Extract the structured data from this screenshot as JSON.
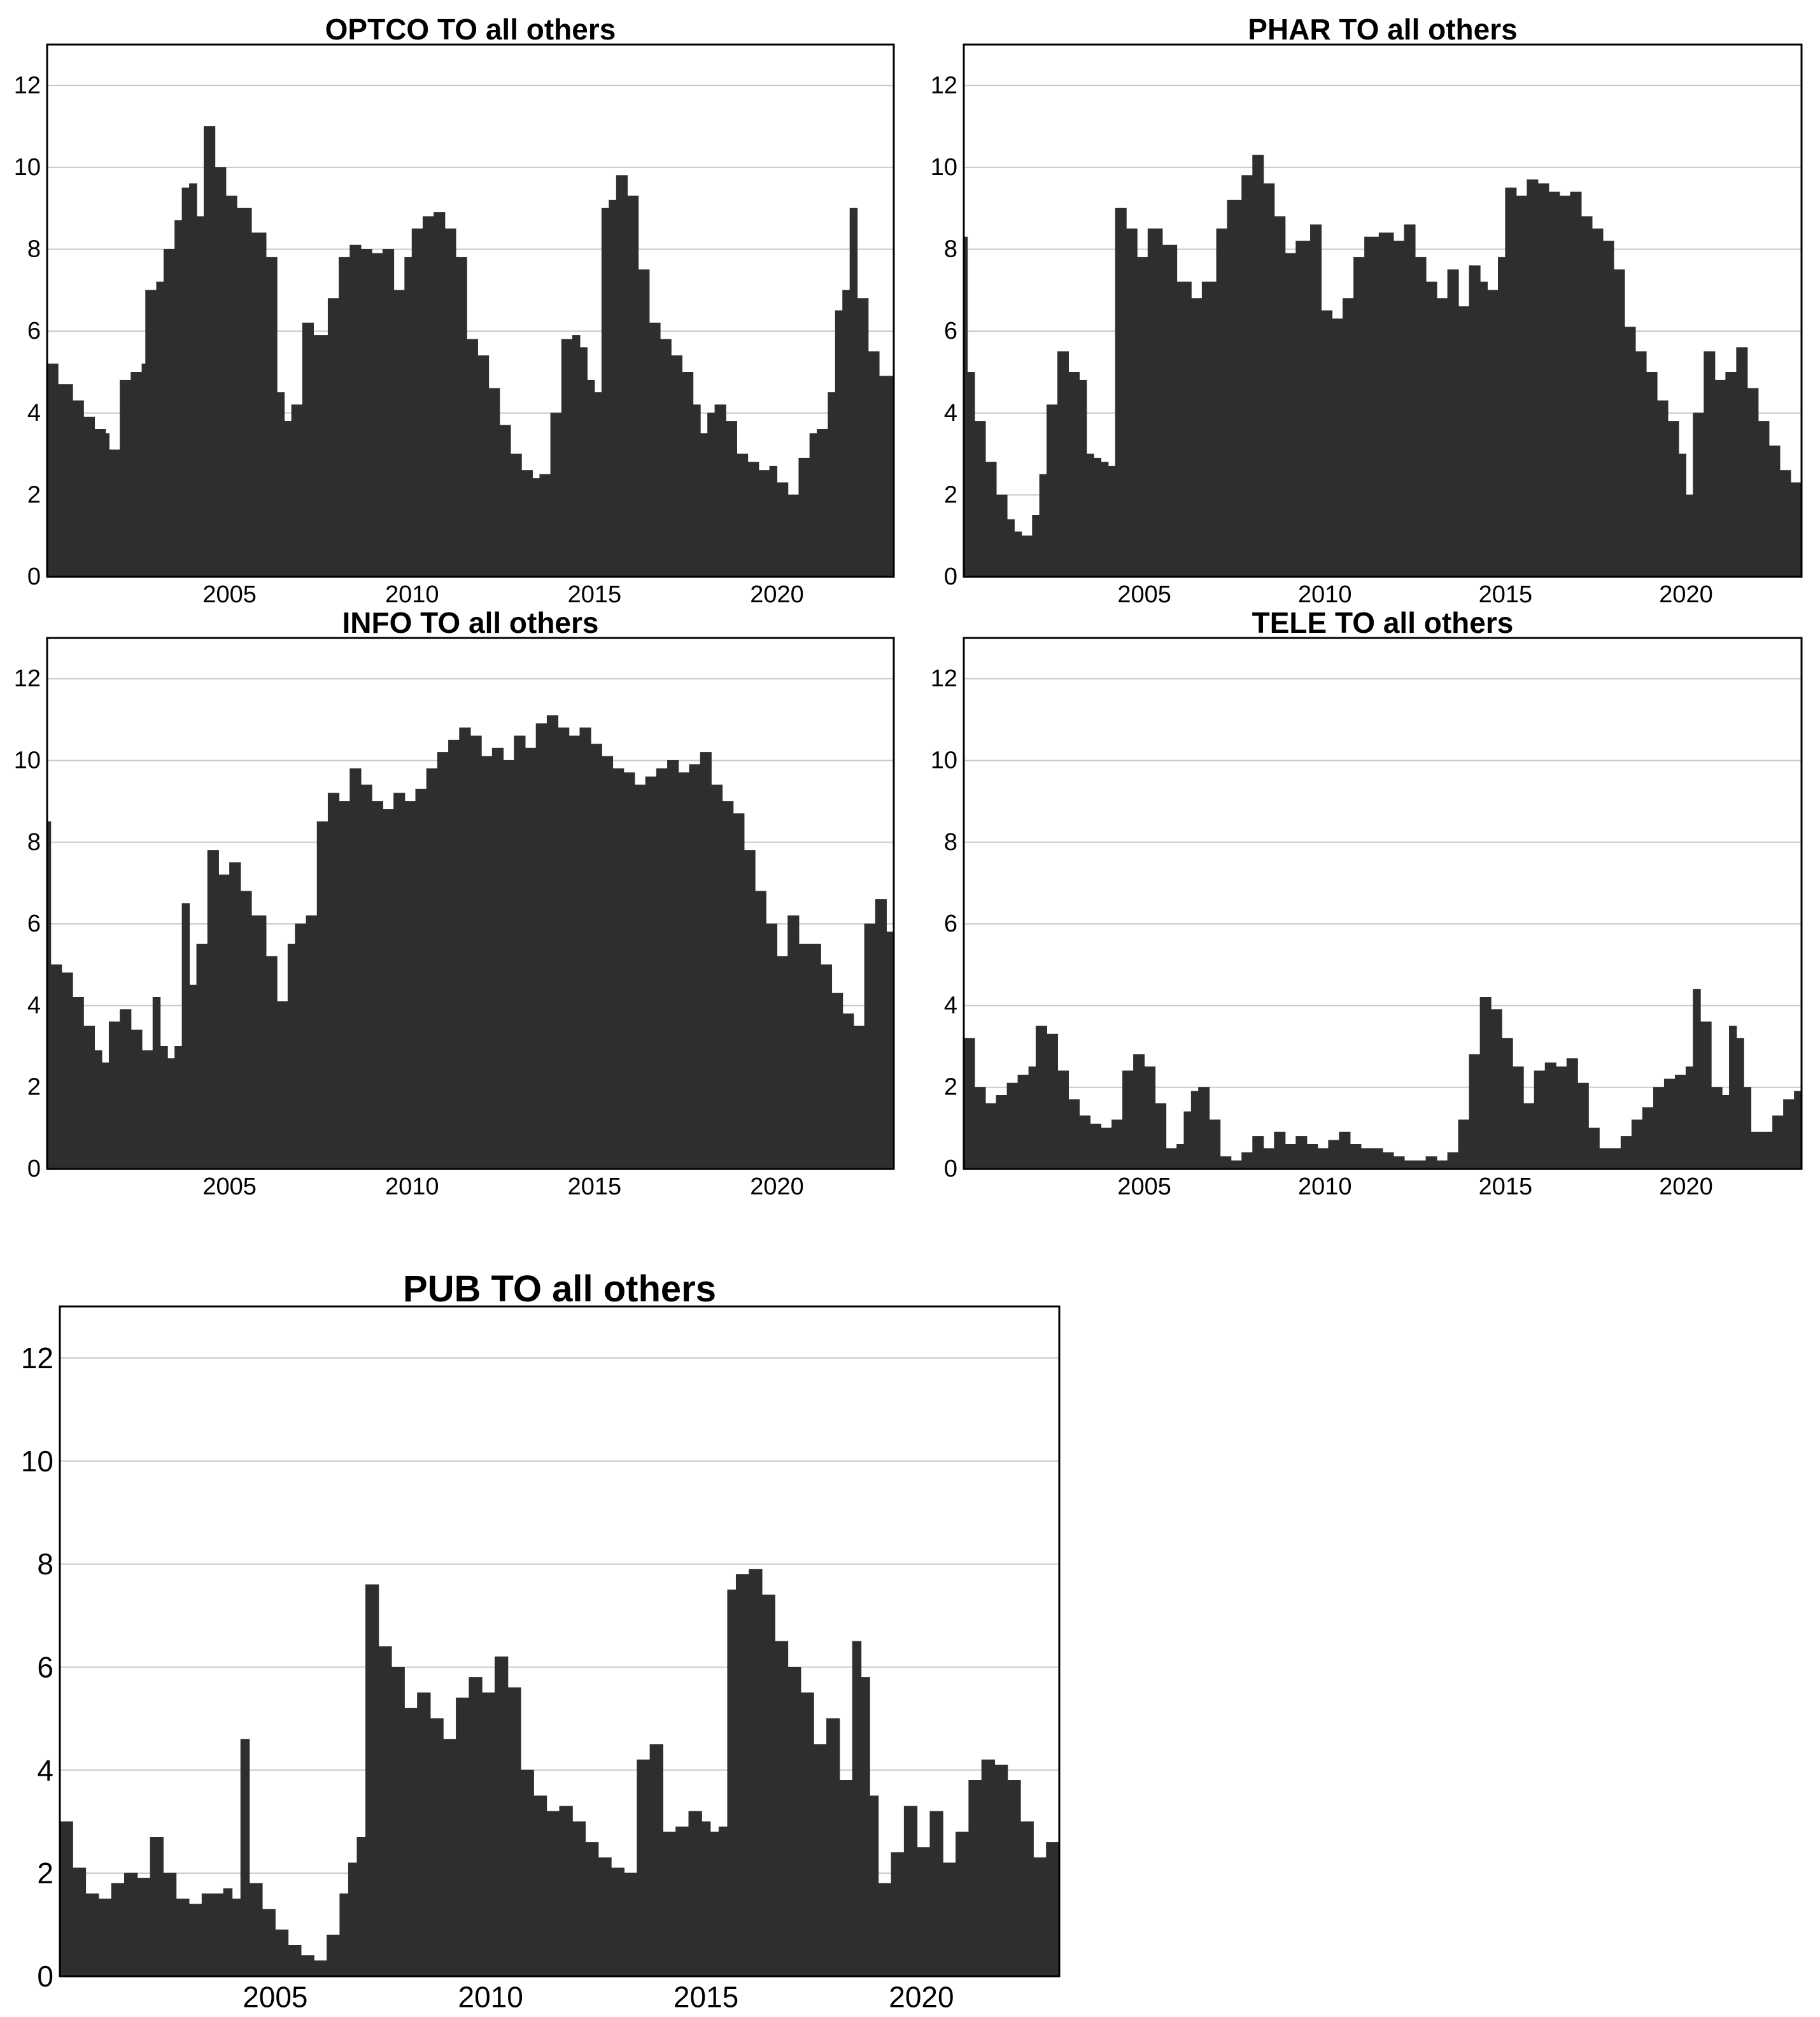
{
  "colors": {
    "area": "#2e2e2e",
    "grid": "#c8c8c8",
    "frame": "#000000",
    "background": "#ffffff"
  },
  "chart_data": [
    {
      "type": "area",
      "title": "OPTCO TO all others",
      "xlabel": "",
      "ylabel": "",
      "xlim": [
        2000,
        2023.2
      ],
      "ylim": [
        0,
        13
      ],
      "xticks": [
        2005,
        2010,
        2015,
        2020
      ],
      "yticks": [
        0,
        2,
        4,
        6,
        8,
        10,
        12
      ],
      "grid": "horizontal",
      "legend": "none",
      "x": [
        2000.0,
        2000.3,
        2000.7,
        2001.0,
        2001.3,
        2001.6,
        2001.7,
        2002.0,
        2002.3,
        2002.6,
        2002.7,
        2003.0,
        2003.2,
        2003.5,
        2003.7,
        2003.9,
        2004.1,
        2004.3,
        2004.6,
        2004.9,
        2005.2,
        2005.6,
        2006.0,
        2006.3,
        2006.5,
        2006.7,
        2007.0,
        2007.3,
        2007.7,
        2008.0,
        2008.3,
        2008.6,
        2008.9,
        2009.2,
        2009.5,
        2009.8,
        2010.0,
        2010.3,
        2010.6,
        2010.9,
        2011.2,
        2011.5,
        2011.8,
        2012.1,
        2012.4,
        2012.7,
        2013.0,
        2013.3,
        2013.5,
        2013.8,
        2014.1,
        2014.4,
        2014.6,
        2014.8,
        2015.0,
        2015.2,
        2015.4,
        2015.6,
        2015.9,
        2016.2,
        2016.5,
        2016.8,
        2017.1,
        2017.4,
        2017.7,
        2017.9,
        2018.1,
        2018.3,
        2018.6,
        2018.9,
        2019.2,
        2019.5,
        2019.8,
        2020.0,
        2020.3,
        2020.6,
        2020.9,
        2021.1,
        2021.4,
        2021.6,
        2021.8,
        2022.0,
        2022.2,
        2022.5,
        2022.8,
        2023.2
      ],
      "values": [
        5.2,
        4.7,
        4.3,
        3.9,
        3.6,
        3.5,
        3.1,
        4.8,
        5.0,
        5.2,
        7.0,
        7.2,
        8.0,
        8.7,
        9.5,
        9.6,
        8.8,
        11.0,
        10.0,
        9.3,
        9.0,
        8.4,
        7.8,
        4.5,
        3.8,
        4.2,
        6.2,
        5.9,
        6.8,
        7.8,
        8.1,
        8.0,
        7.9,
        8.0,
        7.0,
        7.8,
        8.5,
        8.8,
        8.9,
        8.5,
        7.8,
        5.8,
        5.4,
        4.6,
        3.7,
        3.0,
        2.6,
        2.4,
        2.5,
        4.0,
        5.8,
        5.9,
        5.6,
        4.8,
        4.5,
        9.0,
        9.2,
        9.8,
        9.3,
        7.5,
        6.2,
        5.8,
        5.4,
        5.0,
        4.2,
        3.5,
        4.0,
        4.2,
        3.8,
        3.0,
        2.8,
        2.6,
        2.7,
        2.3,
        2.0,
        2.9,
        3.5,
        3.6,
        4.5,
        6.5,
        7.0,
        9.0,
        6.8,
        5.5,
        4.9,
        4.6
      ]
    },
    {
      "type": "area",
      "title": "PHAR TO all others",
      "xlabel": "",
      "ylabel": "",
      "xlim": [
        2000,
        2023.2
      ],
      "ylim": [
        0,
        13
      ],
      "xticks": [
        2005,
        2010,
        2015,
        2020
      ],
      "yticks": [
        0,
        2,
        4,
        6,
        8,
        10,
        12
      ],
      "grid": "horizontal",
      "legend": "none",
      "x": [
        2000.0,
        2000.1,
        2000.3,
        2000.6,
        2000.9,
        2001.2,
        2001.4,
        2001.6,
        2001.9,
        2002.1,
        2002.3,
        2002.6,
        2002.9,
        2003.2,
        2003.4,
        2003.6,
        2003.8,
        2004.0,
        2004.2,
        2004.5,
        2004.8,
        2005.1,
        2005.5,
        2005.9,
        2006.3,
        2006.6,
        2007.0,
        2007.3,
        2007.7,
        2008.0,
        2008.3,
        2008.6,
        2008.9,
        2009.2,
        2009.6,
        2009.9,
        2010.2,
        2010.5,
        2010.8,
        2011.1,
        2011.5,
        2011.9,
        2012.2,
        2012.5,
        2012.8,
        2013.1,
        2013.4,
        2013.7,
        2014.0,
        2014.3,
        2014.5,
        2014.8,
        2015.0,
        2015.3,
        2015.6,
        2015.9,
        2016.2,
        2016.5,
        2016.8,
        2017.1,
        2017.4,
        2017.7,
        2018.0,
        2018.3,
        2018.6,
        2018.9,
        2019.2,
        2019.5,
        2019.8,
        2020.0,
        2020.2,
        2020.5,
        2020.8,
        2021.1,
        2021.4,
        2021.7,
        2022.0,
        2022.3,
        2022.6,
        2022.9,
        2023.2
      ],
      "values": [
        8.3,
        5.0,
        3.8,
        2.8,
        2.0,
        1.4,
        1.1,
        1.0,
        1.5,
        2.5,
        4.2,
        5.5,
        5.0,
        4.8,
        3.0,
        2.9,
        2.8,
        2.7,
        9.0,
        8.5,
        7.8,
        8.5,
        8.1,
        7.2,
        6.8,
        7.2,
        8.5,
        9.2,
        9.8,
        10.3,
        9.6,
        8.8,
        7.9,
        8.2,
        8.6,
        6.5,
        6.3,
        6.8,
        7.8,
        8.3,
        8.4,
        8.2,
        8.6,
        7.8,
        7.2,
        6.8,
        7.5,
        6.6,
        7.6,
        7.2,
        7.0,
        7.8,
        9.5,
        9.3,
        9.7,
        9.6,
        9.4,
        9.3,
        9.4,
        8.8,
        8.5,
        8.2,
        7.5,
        6.1,
        5.5,
        5.0,
        4.3,
        3.8,
        3.0,
        2.0,
        4.0,
        5.5,
        4.8,
        5.0,
        5.6,
        4.6,
        3.8,
        3.2,
        2.6,
        2.3,
        2.1
      ]
    },
    {
      "type": "area",
      "title": "INFO TO all others",
      "xlabel": "",
      "ylabel": "",
      "xlim": [
        2000,
        2023.2
      ],
      "ylim": [
        0,
        13
      ],
      "xticks": [
        2005,
        2010,
        2015,
        2020
      ],
      "yticks": [
        0,
        2,
        4,
        6,
        8,
        10,
        12
      ],
      "grid": "horizontal",
      "legend": "none",
      "x": [
        2000.0,
        2000.1,
        2000.4,
        2000.7,
        2001.0,
        2001.3,
        2001.5,
        2001.7,
        2002.0,
        2002.3,
        2002.6,
        2002.9,
        2003.1,
        2003.3,
        2003.5,
        2003.7,
        2003.9,
        2004.1,
        2004.4,
        2004.7,
        2005.0,
        2005.3,
        2005.6,
        2006.0,
        2006.3,
        2006.6,
        2006.8,
        2007.1,
        2007.4,
        2007.7,
        2008.0,
        2008.3,
        2008.6,
        2008.9,
        2009.2,
        2009.5,
        2009.8,
        2010.1,
        2010.4,
        2010.7,
        2011.0,
        2011.3,
        2011.6,
        2011.9,
        2012.2,
        2012.5,
        2012.8,
        2013.1,
        2013.4,
        2013.7,
        2014.0,
        2014.3,
        2014.6,
        2014.9,
        2015.2,
        2015.5,
        2015.8,
        2016.1,
        2016.4,
        2016.7,
        2017.0,
        2017.3,
        2017.6,
        2017.9,
        2018.2,
        2018.5,
        2018.8,
        2019.1,
        2019.4,
        2019.7,
        2020.0,
        2020.3,
        2020.6,
        2020.9,
        2021.2,
        2021.5,
        2021.8,
        2022.1,
        2022.4,
        2022.7,
        2023.0,
        2023.2
      ],
      "values": [
        8.5,
        5.0,
        4.8,
        4.2,
        3.5,
        2.9,
        2.6,
        3.6,
        3.9,
        3.4,
        2.9,
        4.2,
        3.0,
        2.7,
        3.0,
        6.5,
        4.5,
        5.5,
        7.8,
        7.2,
        7.5,
        6.8,
        6.2,
        5.2,
        4.1,
        5.5,
        6.0,
        6.2,
        8.5,
        9.2,
        9.0,
        9.8,
        9.4,
        9.0,
        8.8,
        9.2,
        9.0,
        9.3,
        9.8,
        10.2,
        10.5,
        10.8,
        10.6,
        10.1,
        10.3,
        10.0,
        10.6,
        10.3,
        10.9,
        11.1,
        10.8,
        10.6,
        10.8,
        10.4,
        10.1,
        9.8,
        9.7,
        9.4,
        9.6,
        9.8,
        10.0,
        9.7,
        9.9,
        10.2,
        9.4,
        9.0,
        8.7,
        7.8,
        6.8,
        6.0,
        5.2,
        6.2,
        5.5,
        5.5,
        5.0,
        4.3,
        3.8,
        3.5,
        6.0,
        6.6,
        5.8,
        4.4
      ]
    },
    {
      "type": "area",
      "title": "TELE TO all others",
      "xlabel": "",
      "ylabel": "",
      "xlim": [
        2000,
        2023.2
      ],
      "ylim": [
        0,
        13
      ],
      "xticks": [
        2005,
        2010,
        2015,
        2020
      ],
      "yticks": [
        0,
        2,
        4,
        6,
        8,
        10,
        12
      ],
      "grid": "horizontal",
      "legend": "none",
      "x": [
        2000.0,
        2000.3,
        2000.6,
        2000.9,
        2001.2,
        2001.5,
        2001.8,
        2002.0,
        2002.3,
        2002.6,
        2002.9,
        2003.2,
        2003.5,
        2003.8,
        2004.1,
        2004.4,
        2004.7,
        2005.0,
        2005.3,
        2005.6,
        2005.9,
        2006.1,
        2006.3,
        2006.5,
        2006.8,
        2007.1,
        2007.4,
        2007.7,
        2008.0,
        2008.3,
        2008.6,
        2008.9,
        2009.2,
        2009.5,
        2009.8,
        2010.1,
        2010.4,
        2010.7,
        2011.0,
        2011.3,
        2011.6,
        2011.9,
        2012.2,
        2012.5,
        2012.8,
        2013.1,
        2013.4,
        2013.7,
        2014.0,
        2014.3,
        2014.6,
        2014.9,
        2015.2,
        2015.5,
        2015.8,
        2016.1,
        2016.4,
        2016.7,
        2017.0,
        2017.3,
        2017.6,
        2017.9,
        2018.2,
        2018.5,
        2018.8,
        2019.1,
        2019.4,
        2019.7,
        2020.0,
        2020.2,
        2020.4,
        2020.7,
        2021.0,
        2021.2,
        2021.4,
        2021.6,
        2021.8,
        2022.1,
        2022.4,
        2022.7,
        2023.0,
        2023.2
      ],
      "values": [
        3.2,
        2.0,
        1.6,
        1.8,
        2.1,
        2.3,
        2.5,
        3.5,
        3.3,
        2.4,
        1.7,
        1.3,
        1.1,
        1.0,
        1.2,
        2.4,
        2.8,
        2.5,
        1.6,
        0.5,
        0.6,
        1.4,
        1.9,
        2.0,
        1.2,
        0.3,
        0.2,
        0.4,
        0.8,
        0.5,
        0.9,
        0.6,
        0.8,
        0.6,
        0.5,
        0.7,
        0.9,
        0.6,
        0.5,
        0.5,
        0.4,
        0.3,
        0.2,
        0.2,
        0.3,
        0.2,
        0.4,
        1.2,
        2.8,
        4.2,
        3.9,
        3.2,
        2.5,
        1.6,
        2.4,
        2.6,
        2.5,
        2.7,
        2.1,
        1.0,
        0.5,
        0.5,
        0.8,
        1.2,
        1.5,
        2.0,
        2.2,
        2.3,
        2.5,
        4.4,
        3.6,
        2.0,
        1.8,
        3.5,
        3.2,
        2.0,
        0.9,
        0.9,
        1.3,
        1.7,
        1.9,
        2.0
      ]
    },
    {
      "type": "area",
      "title": "PUB TO all others",
      "xlabel": "",
      "ylabel": "",
      "xlim": [
        2000,
        2023.2
      ],
      "ylim": [
        0,
        13
      ],
      "xticks": [
        2005,
        2010,
        2015,
        2020
      ],
      "yticks": [
        0,
        2,
        4,
        6,
        8,
        10,
        12
      ],
      "grid": "horizontal",
      "legend": "none",
      "x": [
        2000.0,
        2000.3,
        2000.6,
        2000.9,
        2001.2,
        2001.5,
        2001.8,
        2002.1,
        2002.4,
        2002.7,
        2003.0,
        2003.3,
        2003.6,
        2003.8,
        2004.0,
        2004.2,
        2004.4,
        2004.7,
        2005.0,
        2005.3,
        2005.6,
        2005.9,
        2006.2,
        2006.5,
        2006.7,
        2006.9,
        2007.1,
        2007.4,
        2007.7,
        2008.0,
        2008.3,
        2008.6,
        2008.9,
        2009.2,
        2009.5,
        2009.8,
        2010.1,
        2010.4,
        2010.7,
        2011.0,
        2011.3,
        2011.6,
        2011.9,
        2012.2,
        2012.5,
        2012.8,
        2013.1,
        2013.4,
        2013.7,
        2014.0,
        2014.3,
        2014.6,
        2014.9,
        2015.1,
        2015.3,
        2015.5,
        2015.7,
        2016.0,
        2016.3,
        2016.6,
        2016.9,
        2017.2,
        2017.5,
        2017.8,
        2018.1,
        2018.4,
        2018.6,
        2018.8,
        2019.0,
        2019.3,
        2019.6,
        2019.9,
        2020.2,
        2020.5,
        2020.8,
        2021.1,
        2021.4,
        2021.7,
        2022.0,
        2022.3,
        2022.6,
        2022.9,
        2023.2
      ],
      "values": [
        3.0,
        2.1,
        1.6,
        1.5,
        1.8,
        2.0,
        1.9,
        2.7,
        2.0,
        1.5,
        1.4,
        1.6,
        1.6,
        1.7,
        1.5,
        4.6,
        1.8,
        1.3,
        0.9,
        0.6,
        0.4,
        0.3,
        0.8,
        1.6,
        2.2,
        2.7,
        7.6,
        6.4,
        6.0,
        5.2,
        5.5,
        5.0,
        4.6,
        5.4,
        5.8,
        5.5,
        6.2,
        5.6,
        4.0,
        3.5,
        3.2,
        3.3,
        3.0,
        2.6,
        2.3,
        2.1,
        2.0,
        4.2,
        4.5,
        2.8,
        2.9,
        3.2,
        3.0,
        2.8,
        2.9,
        7.5,
        7.8,
        7.9,
        7.4,
        6.5,
        6.0,
        5.5,
        4.5,
        5.0,
        3.8,
        6.5,
        5.8,
        3.5,
        1.8,
        2.4,
        3.3,
        2.5,
        3.2,
        2.2,
        2.8,
        3.8,
        4.2,
        4.1,
        3.8,
        3.0,
        2.3,
        2.6,
        2.8
      ]
    }
  ]
}
